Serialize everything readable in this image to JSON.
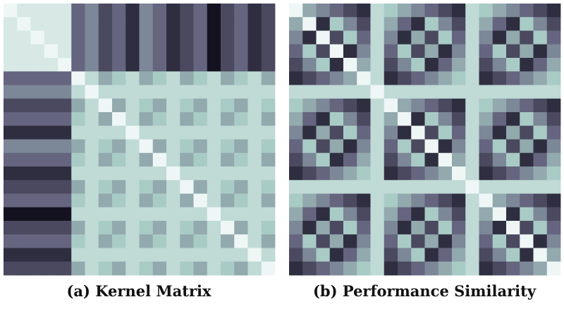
{
  "panels": [
    {
      "caption": "(a) Kernel Matrix",
      "matrix": [
        [
          0,
          1,
          1,
          1,
          1,
          6,
          5,
          7,
          6,
          8,
          5,
          6,
          8,
          7,
          6,
          9,
          7,
          6,
          8,
          7
        ],
        [
          1,
          0,
          1,
          1,
          1,
          6,
          5,
          7,
          6,
          8,
          5,
          6,
          8,
          7,
          6,
          9,
          7,
          6,
          8,
          7
        ],
        [
          1,
          1,
          0,
          1,
          1,
          6,
          5,
          7,
          6,
          8,
          5,
          6,
          8,
          7,
          6,
          9,
          7,
          6,
          8,
          7
        ],
        [
          1,
          1,
          1,
          0,
          1,
          6,
          5,
          7,
          6,
          8,
          5,
          6,
          8,
          7,
          6,
          9,
          7,
          6,
          8,
          7
        ],
        [
          1,
          1,
          1,
          1,
          0,
          6,
          5,
          7,
          6,
          8,
          5,
          6,
          8,
          7,
          6,
          9,
          7,
          6,
          8,
          7
        ],
        [
          6,
          6,
          6,
          6,
          6,
          0,
          2,
          4,
          3,
          2,
          4,
          3,
          2,
          4,
          3,
          2,
          4,
          3,
          2,
          4
        ],
        [
          5,
          5,
          5,
          5,
          5,
          2,
          0,
          2,
          2,
          2,
          2,
          2,
          2,
          2,
          2,
          2,
          2,
          2,
          2,
          2
        ],
        [
          7,
          7,
          7,
          7,
          7,
          4,
          2,
          0,
          4,
          2,
          3,
          4,
          2,
          3,
          4,
          2,
          3,
          4,
          2,
          3
        ],
        [
          6,
          6,
          6,
          6,
          6,
          3,
          2,
          4,
          0,
          2,
          4,
          3,
          2,
          4,
          3,
          2,
          4,
          3,
          2,
          4
        ],
        [
          8,
          8,
          8,
          8,
          8,
          2,
          2,
          2,
          2,
          0,
          2,
          2,
          2,
          2,
          2,
          2,
          2,
          2,
          2,
          2
        ],
        [
          5,
          5,
          5,
          5,
          5,
          4,
          2,
          3,
          4,
          2,
          0,
          4,
          2,
          3,
          4,
          2,
          3,
          4,
          2,
          3
        ],
        [
          6,
          6,
          6,
          6,
          6,
          3,
          2,
          4,
          3,
          2,
          4,
          0,
          2,
          4,
          3,
          2,
          4,
          3,
          2,
          4
        ],
        [
          8,
          8,
          8,
          8,
          8,
          2,
          2,
          2,
          2,
          2,
          2,
          2,
          0,
          2,
          2,
          2,
          2,
          2,
          2,
          2
        ],
        [
          7,
          7,
          7,
          7,
          7,
          4,
          2,
          3,
          4,
          2,
          3,
          4,
          2,
          0,
          4,
          2,
          3,
          4,
          2,
          3
        ],
        [
          6,
          6,
          6,
          6,
          6,
          3,
          2,
          4,
          3,
          2,
          4,
          3,
          2,
          4,
          0,
          2,
          4,
          3,
          2,
          4
        ],
        [
          9,
          9,
          9,
          9,
          9,
          2,
          2,
          2,
          2,
          2,
          2,
          2,
          2,
          2,
          2,
          0,
          2,
          2,
          2,
          2
        ],
        [
          7,
          7,
          7,
          7,
          7,
          4,
          2,
          3,
          4,
          2,
          3,
          4,
          2,
          3,
          4,
          2,
          0,
          4,
          2,
          3
        ],
        [
          6,
          6,
          6,
          6,
          6,
          3,
          2,
          4,
          3,
          2,
          4,
          3,
          2,
          4,
          3,
          2,
          4,
          0,
          2,
          4
        ],
        [
          8,
          8,
          8,
          8,
          8,
          2,
          2,
          2,
          2,
          2,
          2,
          2,
          2,
          2,
          2,
          2,
          2,
          2,
          0,
          2
        ],
        [
          7,
          7,
          7,
          7,
          7,
          4,
          2,
          3,
          4,
          2,
          3,
          4,
          2,
          3,
          4,
          2,
          3,
          4,
          2,
          0
        ]
      ]
    },
    {
      "caption": "(b) Performance Similarity",
      "matrix": [
        [
          0,
          4,
          5,
          6,
          7,
          8,
          2,
          3,
          4,
          5,
          6,
          7,
          8,
          2,
          3,
          4,
          5,
          6,
          7,
          8
        ],
        [
          4,
          0,
          8,
          3,
          5,
          7,
          2,
          4,
          6,
          8,
          3,
          5,
          7,
          2,
          4,
          6,
          8,
          3,
          5,
          7
        ],
        [
          5,
          8,
          0,
          7,
          3,
          6,
          2,
          5,
          8,
          4,
          7,
          3,
          6,
          2,
          5,
          8,
          4,
          7,
          3,
          6
        ],
        [
          6,
          3,
          7,
          0,
          8,
          5,
          2,
          6,
          3,
          7,
          4,
          8,
          5,
          2,
          6,
          3,
          7,
          4,
          8,
          5
        ],
        [
          7,
          5,
          3,
          8,
          0,
          4,
          2,
          7,
          5,
          3,
          8,
          6,
          4,
          2,
          7,
          5,
          3,
          8,
          6,
          4
        ],
        [
          8,
          7,
          6,
          5,
          4,
          0,
          2,
          8,
          7,
          6,
          5,
          4,
          3,
          2,
          8,
          7,
          6,
          5,
          4,
          3
        ],
        [
          2,
          2,
          2,
          2,
          2,
          2,
          0,
          2,
          2,
          2,
          2,
          2,
          2,
          2,
          2,
          2,
          2,
          2,
          2,
          2
        ],
        [
          3,
          4,
          5,
          6,
          7,
          8,
          2,
          0,
          4,
          5,
          6,
          7,
          8,
          2,
          3,
          4,
          5,
          6,
          7,
          8
        ],
        [
          4,
          6,
          8,
          3,
          5,
          7,
          2,
          4,
          0,
          8,
          3,
          5,
          7,
          2,
          4,
          6,
          8,
          3,
          5,
          7
        ],
        [
          5,
          8,
          4,
          7,
          3,
          6,
          2,
          5,
          8,
          0,
          7,
          3,
          6,
          2,
          5,
          8,
          4,
          7,
          3,
          6
        ],
        [
          6,
          3,
          7,
          4,
          8,
          5,
          2,
          6,
          3,
          7,
          0,
          8,
          5,
          2,
          6,
          3,
          7,
          4,
          8,
          5
        ],
        [
          7,
          5,
          3,
          8,
          6,
          4,
          2,
          7,
          5,
          3,
          8,
          0,
          4,
          2,
          7,
          5,
          3,
          8,
          6,
          4
        ],
        [
          8,
          7,
          6,
          5,
          4,
          3,
          2,
          8,
          7,
          6,
          5,
          4,
          0,
          2,
          8,
          7,
          6,
          5,
          4,
          3
        ],
        [
          2,
          2,
          2,
          2,
          2,
          2,
          2,
          2,
          2,
          2,
          2,
          2,
          2,
          0,
          2,
          2,
          2,
          2,
          2,
          2
        ],
        [
          3,
          4,
          5,
          6,
          7,
          8,
          2,
          3,
          4,
          5,
          6,
          7,
          8,
          2,
          0,
          4,
          5,
          6,
          7,
          8
        ],
        [
          4,
          6,
          8,
          3,
          5,
          7,
          2,
          4,
          6,
          8,
          3,
          5,
          7,
          2,
          4,
          0,
          8,
          3,
          5,
          7
        ],
        [
          5,
          8,
          4,
          7,
          3,
          6,
          2,
          5,
          8,
          4,
          7,
          3,
          6,
          2,
          5,
          8,
          0,
          7,
          3,
          6
        ],
        [
          6,
          3,
          7,
          4,
          8,
          5,
          2,
          6,
          3,
          7,
          4,
          8,
          5,
          2,
          6,
          3,
          7,
          0,
          8,
          5
        ],
        [
          7,
          5,
          3,
          8,
          6,
          4,
          2,
          7,
          5,
          3,
          8,
          6,
          4,
          2,
          7,
          5,
          3,
          8,
          0,
          4
        ],
        [
          8,
          7,
          6,
          5,
          4,
          3,
          2,
          8,
          7,
          6,
          5,
          4,
          3,
          2,
          8,
          7,
          6,
          5,
          4,
          0
        ]
      ]
    }
  ],
  "vlim": [
    0,
    9
  ],
  "colors": [
    "#eef7f5",
    "#a9cbc6",
    "#65657f",
    "#141220"
  ]
}
